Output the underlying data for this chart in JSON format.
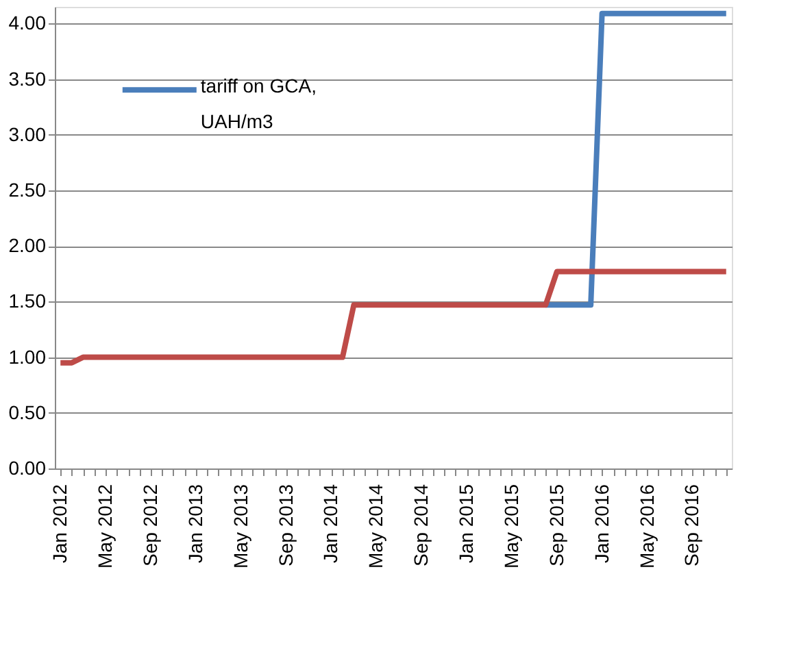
{
  "chart_data": {
    "type": "line",
    "categories": [
      "Jan 2012",
      null,
      null,
      null,
      "May 2012",
      null,
      null,
      null,
      "Sep 2012",
      null,
      null,
      null,
      "Jan 2013",
      null,
      null,
      null,
      "May 2013",
      null,
      null,
      null,
      "Sep 2013",
      null,
      null,
      null,
      "Jan 2014",
      null,
      null,
      null,
      "May 2014",
      null,
      null,
      null,
      "Sep 2014",
      null,
      null,
      null,
      "Jan 2015",
      null,
      null,
      null,
      "May 2015",
      null,
      null,
      null,
      "Sep 2015",
      null,
      null,
      null,
      "Jan 2016",
      null,
      null,
      null,
      "May 2016",
      null,
      null,
      null,
      "Sep 2016",
      null,
      null,
      null
    ],
    "series": [
      {
        "name": "tariff on GCA, UAH/m3",
        "color": "#4a7ebb",
        "values": [
          null,
          null,
          null,
          null,
          null,
          null,
          null,
          null,
          null,
          null,
          null,
          null,
          null,
          null,
          null,
          null,
          null,
          null,
          null,
          null,
          null,
          null,
          null,
          null,
          null,
          null,
          null,
          null,
          null,
          null,
          null,
          null,
          null,
          null,
          null,
          null,
          null,
          null,
          null,
          null,
          null,
          null,
          null,
          1.47,
          1.47,
          1.47,
          1.47,
          1.47,
          4.09,
          4.09,
          4.09,
          4.09,
          4.09,
          4.09,
          4.09,
          4.09,
          4.09,
          4.09,
          4.09,
          4.09
        ]
      },
      {
        "color": "#be4b48",
        "values": [
          0.95,
          0.95,
          1.0,
          1.0,
          1.0,
          1.0,
          1.0,
          1.0,
          1.0,
          1.0,
          1.0,
          1.0,
          1.0,
          1.0,
          1.0,
          1.0,
          1.0,
          1.0,
          1.0,
          1.0,
          1.0,
          1.0,
          1.0,
          1.0,
          1.0,
          1.0,
          1.47,
          1.47,
          1.47,
          1.47,
          1.47,
          1.47,
          1.47,
          1.47,
          1.47,
          1.47,
          1.47,
          1.47,
          1.47,
          1.47,
          1.47,
          1.47,
          1.47,
          1.47,
          1.77,
          1.77,
          1.77,
          1.77,
          1.77,
          1.77,
          1.77,
          1.77,
          1.77,
          1.77,
          1.77,
          1.77,
          1.77,
          1.77,
          1.77,
          1.77
        ]
      }
    ],
    "ylim": [
      0,
      4.15
    ],
    "yticks": [
      {
        "value": 0,
        "label": "0.00"
      },
      {
        "value": 0.5,
        "label": "0.50"
      },
      {
        "value": 1,
        "label": "1.00"
      },
      {
        "value": 1.5,
        "label": "1.50"
      },
      {
        "value": 2,
        "label": "2.00"
      },
      {
        "value": 2.5,
        "label": "2.50"
      },
      {
        "value": 3,
        "label": "3.00"
      },
      {
        "value": 3.5,
        "label": "3.50"
      },
      {
        "value": 4,
        "label": "4.00"
      }
    ],
    "grid": "y",
    "legend": "top left",
    "marker": "none",
    "line_style": "solid"
  }
}
